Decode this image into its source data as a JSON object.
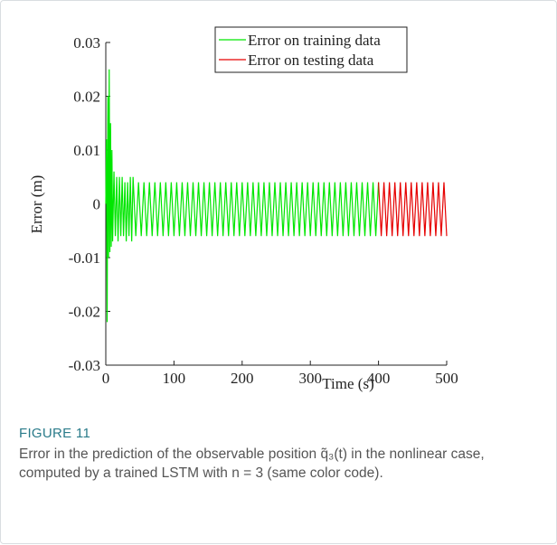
{
  "chart_data": {
    "type": "line",
    "ylabel": "Error (m)",
    "xlabel": "Time (s)",
    "xlim": [
      0,
      500
    ],
    "xticks": [
      0,
      100,
      200,
      300,
      400,
      500
    ],
    "ylim": [
      -0.03,
      0.03
    ],
    "yticks": [
      -0.03,
      -0.02,
      -0.01,
      0,
      0.01,
      0.02,
      0.03
    ],
    "legend": "top",
    "series": [
      {
        "name": "Error on training data",
        "color": "#00e600",
        "x": [
          0,
          1,
          2,
          3,
          4,
          5,
          6,
          7,
          8,
          9,
          10,
          12,
          14,
          16,
          18,
          20,
          22,
          24,
          26,
          28,
          30,
          32,
          34,
          36,
          38,
          40,
          44,
          48,
          52,
          56,
          60,
          64,
          68,
          72,
          76,
          80,
          84,
          88,
          92,
          96,
          100,
          104,
          108,
          112,
          116,
          120,
          124,
          128,
          132,
          136,
          140,
          144,
          148,
          152,
          156,
          160,
          164,
          168,
          172,
          176,
          180,
          184,
          188,
          192,
          196,
          200,
          204,
          208,
          212,
          216,
          220,
          224,
          228,
          232,
          236,
          240,
          244,
          248,
          252,
          256,
          260,
          264,
          268,
          272,
          276,
          280,
          284,
          288,
          292,
          296,
          300,
          304,
          308,
          312,
          316,
          320,
          324,
          328,
          332,
          336,
          340,
          344,
          348,
          352,
          356,
          360,
          364,
          368,
          372,
          376,
          380,
          384,
          388,
          392,
          396,
          400
        ],
        "values": [
          0,
          0.012,
          -0.022,
          0.02,
          -0.01,
          0.025,
          -0.009,
          0.015,
          -0.008,
          0.01,
          -0.007,
          0.006,
          -0.006,
          0.005,
          -0.007,
          0.005,
          -0.006,
          0.005,
          -0.006,
          0.004,
          -0.007,
          0.004,
          -0.006,
          0.005,
          -0.007,
          0.005,
          -0.006,
          0.004,
          -0.006,
          0.004,
          -0.006,
          0.004,
          -0.006,
          0.004,
          -0.006,
          0.004,
          -0.006,
          0.004,
          -0.006,
          0.004,
          -0.006,
          0.004,
          -0.006,
          0.004,
          -0.006,
          0.004,
          -0.006,
          0.004,
          -0.006,
          0.004,
          -0.006,
          0.004,
          -0.006,
          0.004,
          -0.006,
          0.004,
          -0.006,
          0.004,
          -0.006,
          0.004,
          -0.006,
          0.004,
          -0.006,
          0.004,
          -0.006,
          0.004,
          -0.006,
          0.004,
          -0.006,
          0.004,
          -0.006,
          0.004,
          -0.006,
          0.004,
          -0.006,
          0.004,
          -0.006,
          0.004,
          -0.006,
          0.004,
          -0.006,
          0.004,
          -0.006,
          0.004,
          -0.006,
          0.004,
          -0.006,
          0.004,
          -0.006,
          0.004,
          -0.006,
          0.004,
          -0.006,
          0.004,
          -0.006,
          0.004,
          -0.006,
          0.004,
          -0.006,
          0.004,
          -0.006,
          0.004,
          -0.006,
          0.004,
          -0.006,
          0.004,
          -0.006,
          0.004,
          -0.006,
          0.004,
          -0.006,
          0.004,
          -0.006,
          0.004,
          -0.006,
          0.004
        ]
      },
      {
        "name": "Error on testing data",
        "color": "#e60000",
        "x": [
          400,
          404,
          408,
          412,
          416,
          420,
          424,
          428,
          432,
          436,
          440,
          444,
          448,
          452,
          456,
          460,
          464,
          468,
          472,
          476,
          480,
          484,
          488,
          492,
          496,
          500
        ],
        "values": [
          0.004,
          -0.006,
          0.004,
          -0.006,
          0.004,
          -0.006,
          0.004,
          -0.006,
          0.004,
          -0.006,
          0.004,
          -0.006,
          0.004,
          -0.006,
          0.004,
          -0.006,
          0.004,
          -0.006,
          0.004,
          -0.006,
          0.004,
          -0.006,
          0.004,
          -0.006,
          0.004,
          -0.006
        ]
      }
    ]
  },
  "figure_label": "FIGURE 11",
  "caption": "Error in the prediction of the observable position q̃₃(t) in the nonlinear case, computed by a trained LSTM with n = 3 (same color code)."
}
